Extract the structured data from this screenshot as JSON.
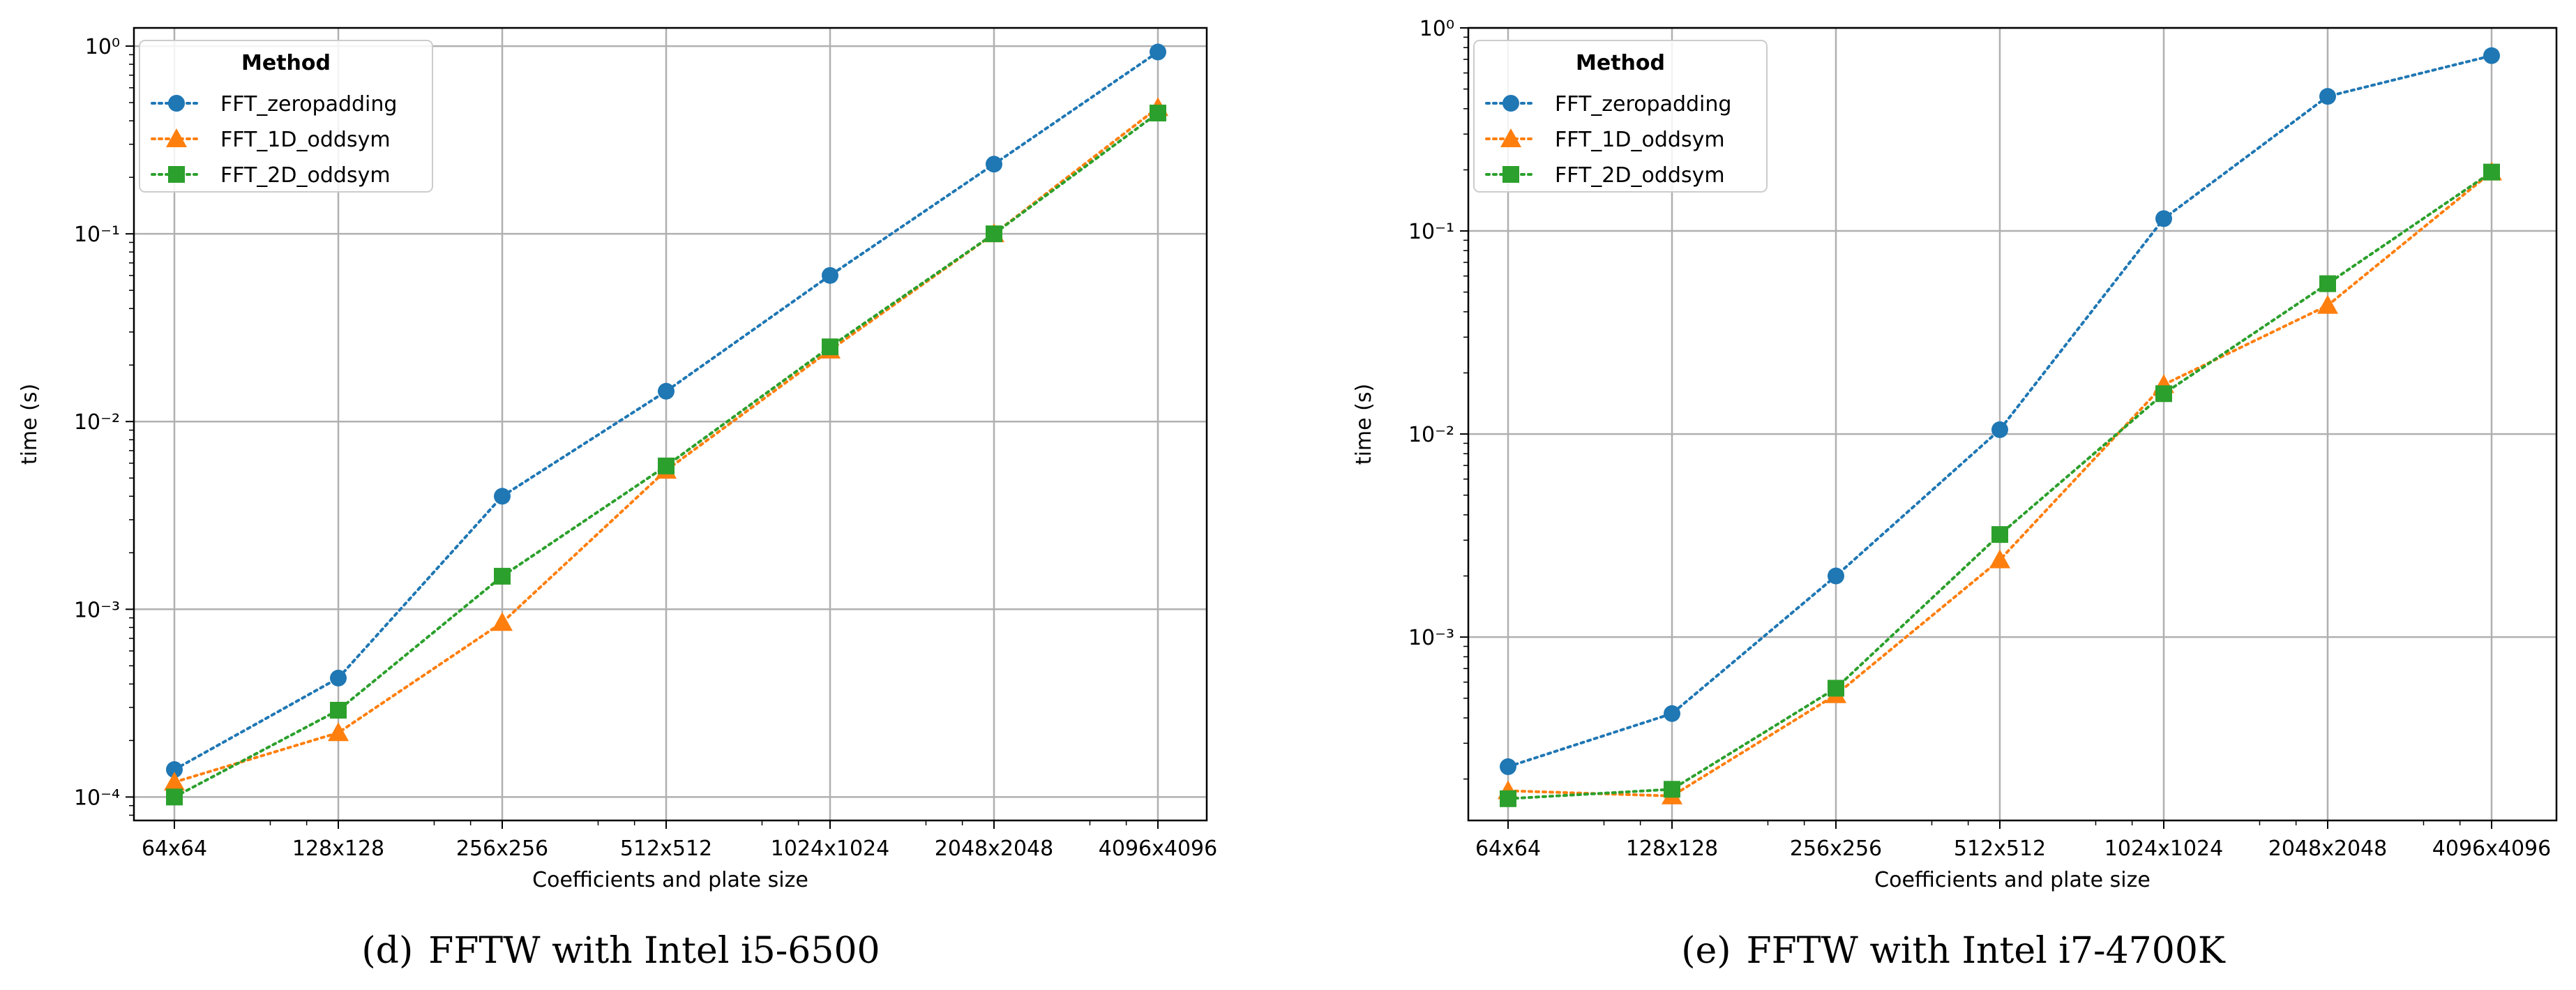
{
  "chart_data": [
    {
      "type": "line",
      "panel_label": "(d)",
      "caption": "FFTW with Intel i5-6500",
      "title": "",
      "xlabel": "Coefficients and plate size",
      "ylabel": "time (s)",
      "yscale": "log",
      "ylim": [
        7.5e-05,
        1.25
      ],
      "ytick_labels": [
        "10⁻⁴",
        "10⁻³",
        "10⁻²",
        "10⁻¹",
        "10⁰"
      ],
      "ytick_values": [
        0.0001,
        0.001,
        0.01,
        0.1,
        1
      ],
      "categories": [
        "64x64",
        "128x128",
        "256x256",
        "512x512",
        "1024x1024",
        "2048x2048",
        "4096x4096"
      ],
      "grid": true,
      "legend_title": "Method",
      "legend_position": "top-left",
      "series": [
        {
          "name": "FFT_zeropadding",
          "color": "#1f77b4",
          "marker": "circle",
          "values": [
            0.00014,
            0.00043,
            0.004,
            0.0145,
            0.06,
            0.235,
            0.93
          ]
        },
        {
          "name": "FFT_1D_oddsym",
          "color": "#ff7f0e",
          "marker": "triangle",
          "values": [
            0.00012,
            0.00022,
            0.00085,
            0.0055,
            0.024,
            0.1,
            0.47
          ]
        },
        {
          "name": "FFT_2D_oddsym",
          "color": "#2ca02c",
          "marker": "square",
          "values": [
            0.0001,
            0.00029,
            0.0015,
            0.0058,
            0.025,
            0.1,
            0.44
          ]
        }
      ]
    },
    {
      "type": "line",
      "panel_label": "(e)",
      "caption": "FFTW with Intel i7-4700K",
      "title": "",
      "xlabel": "Coefficients and plate size",
      "ylabel": "time (s)",
      "yscale": "log",
      "ylim": [
        0.000125,
        1.0
      ],
      "ytick_labels": [
        "10⁻³",
        "10⁻²",
        "10⁻¹",
        "10⁰"
      ],
      "ytick_values": [
        0.001,
        0.01,
        0.1,
        1
      ],
      "categories": [
        "64x64",
        "128x128",
        "256x256",
        "512x512",
        "1024x1024",
        "2048x2048",
        "4096x4096"
      ],
      "grid": true,
      "legend_title": "Method",
      "legend_position": "top-left",
      "series": [
        {
          "name": "FFT_zeropadding",
          "color": "#1f77b4",
          "marker": "circle",
          "values": [
            0.00023,
            0.00042,
            0.002,
            0.0105,
            0.115,
            0.46,
            0.73
          ]
        },
        {
          "name": "FFT_1D_oddsym",
          "color": "#ff7f0e",
          "marker": "triangle",
          "values": [
            0.000175,
            0.000165,
            0.00052,
            0.0024,
            0.0175,
            0.043,
            0.195
          ]
        },
        {
          "name": "FFT_2D_oddsym",
          "color": "#2ca02c",
          "marker": "square",
          "values": [
            0.00016,
            0.000178,
            0.00056,
            0.0032,
            0.0158,
            0.055,
            0.195
          ]
        }
      ]
    }
  ]
}
